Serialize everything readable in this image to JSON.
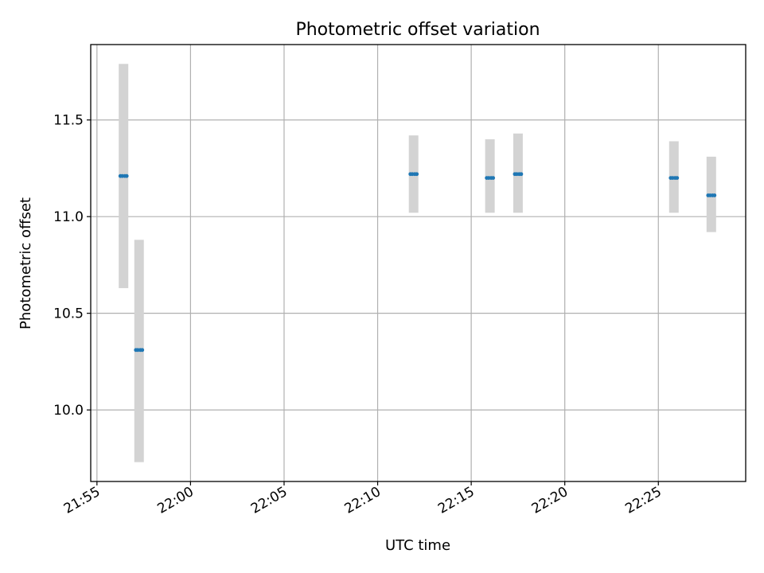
{
  "chart_data": {
    "type": "scatter",
    "title": "Photometric offset variation",
    "xlabel": "UTC time",
    "ylabel": "Photometric offset",
    "x_tick_labels": [
      "21:55",
      "22:00",
      "22:05",
      "22:10",
      "22:15",
      "22:20",
      "22:25"
    ],
    "y_tick_labels": [
      "10.0",
      "10.5",
      "11.0",
      "11.5"
    ],
    "x_ticks_minutes": [
      0,
      5,
      10,
      15,
      20,
      25,
      30
    ],
    "y_ticks": [
      10.0,
      10.5,
      11.0,
      11.5
    ],
    "xlim": [
      "21:54:40",
      "22:29:40"
    ],
    "ylim": [
      9.63,
      11.89
    ],
    "grid": true,
    "series": [
      {
        "marker_color": "#1f77b4",
        "errorbar_color": "#d3d3d3",
        "points": [
          {
            "time": "21:56:25",
            "time_min": 1.42,
            "y": 11.21,
            "lower": 10.63,
            "upper": 11.79
          },
          {
            "time": "21:57:15",
            "time_min": 2.25,
            "y": 10.31,
            "lower": 9.73,
            "upper": 10.88
          },
          {
            "time": "22:11:55",
            "time_min": 16.92,
            "y": 11.22,
            "lower": 11.02,
            "upper": 11.42
          },
          {
            "time": "22:16:00",
            "time_min": 21.0,
            "y": 11.2,
            "lower": 11.02,
            "upper": 11.4
          },
          {
            "time": "22:17:30",
            "time_min": 22.5,
            "y": 11.22,
            "lower": 11.02,
            "upper": 11.43
          },
          {
            "time": "22:25:50",
            "time_min": 30.83,
            "y": 11.2,
            "lower": 11.02,
            "upper": 11.39
          },
          {
            "time": "22:27:50",
            "time_min": 32.83,
            "y": 11.11,
            "lower": 10.92,
            "upper": 11.31
          }
        ]
      }
    ]
  }
}
